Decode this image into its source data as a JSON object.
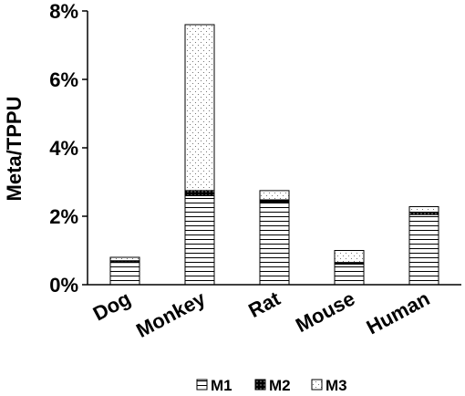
{
  "chart_data": {
    "type": "bar",
    "stacked": true,
    "categories": [
      "Dog",
      "Monkey",
      "Rat",
      "Mouse",
      "Human"
    ],
    "series": [
      {
        "name": "M1",
        "values": [
          0.65,
          2.6,
          2.4,
          0.6,
          2.05
        ],
        "pattern": "horizontal-lines"
      },
      {
        "name": "M2",
        "values": [
          0.05,
          0.15,
          0.08,
          0.05,
          0.07
        ],
        "pattern": "solid-black-dotted"
      },
      {
        "name": "M3",
        "values": [
          0.1,
          4.85,
          0.27,
          0.35,
          0.16
        ],
        "pattern": "dots"
      }
    ],
    "ylabel": "Meta/TPPU",
    "ylim": [
      0,
      8
    ],
    "yticks": [
      "0%",
      "2%",
      "4%",
      "6%",
      "8%"
    ],
    "grid": false,
    "legend_position": "bottom",
    "colors": {
      "ink": "#000000",
      "background": "#ffffff"
    }
  }
}
